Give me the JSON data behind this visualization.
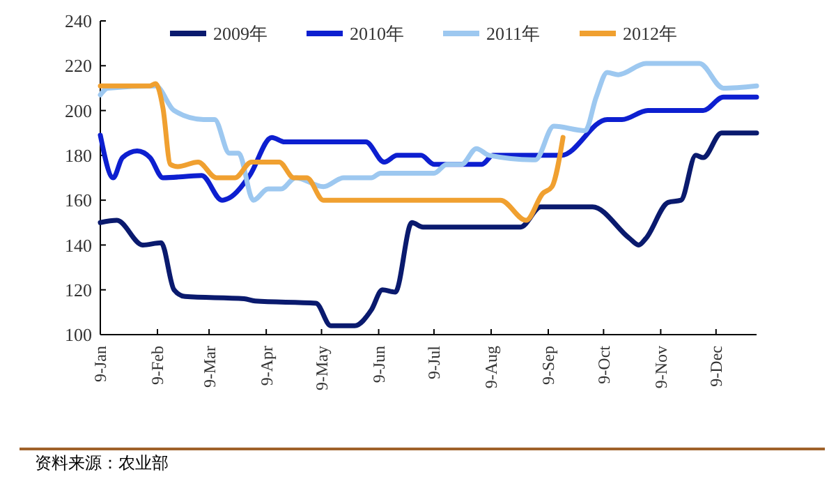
{
  "chart_data": {
    "type": "line",
    "xlim": [
      "--01-09",
      "--12-31"
    ],
    "xticks": [
      {
        "value": "--01-09",
        "label": "9-Jan"
      },
      {
        "value": "--02-09",
        "label": "9-Feb"
      },
      {
        "value": "--03-09",
        "label": "9-Mar"
      },
      {
        "value": "--04-09",
        "label": "9-Apr"
      },
      {
        "value": "--05-09",
        "label": "9-May"
      },
      {
        "value": "--06-09",
        "label": "9-Jun"
      },
      {
        "value": "--07-09",
        "label": "9-Jul"
      },
      {
        "value": "--08-09",
        "label": "9-Aug"
      },
      {
        "value": "--09-09",
        "label": "9-Sep"
      },
      {
        "value": "--10-09",
        "label": "9-Oct"
      },
      {
        "value": "--11-09",
        "label": "9-Nov"
      },
      {
        "value": "--12-09",
        "label": "9-Dec"
      }
    ],
    "ylim": [
      100,
      240
    ],
    "yticks": [
      100,
      120,
      140,
      160,
      180,
      200,
      220,
      240
    ],
    "legend": "top",
    "grid": false,
    "line_style": "solid",
    "series": [
      {
        "name": "2009年",
        "color": "#0a1a6e",
        "x": [
          "--01-09",
          "--01-18",
          "--02-01",
          "--02-11",
          "--02-18",
          "--02-24",
          "--03-28",
          "--04-03",
          "--05-06",
          "--05-14",
          "--05-27",
          "--06-05",
          "--06-11",
          "--06-18",
          "--06-27",
          "--07-03",
          "--08-25",
          "--09-05",
          "--10-03",
          "--10-23",
          "--10-28",
          "--11-01",
          "--11-13",
          "--11-20",
          "--11-28",
          "--12-02",
          "--12-12",
          "--12-31"
        ],
        "values": [
          150,
          151,
          140,
          141,
          120,
          117,
          116,
          115,
          114,
          104,
          104,
          111,
          120,
          119,
          150,
          148,
          148,
          157,
          157,
          143,
          140,
          143,
          159,
          160,
          180,
          179,
          190,
          190
        ]
      },
      {
        "name": "2010年",
        "color": "#0d1fd0",
        "x": [
          "--01-09",
          "--01-16",
          "--01-21",
          "--01-29",
          "--02-05",
          "--02-12",
          "--03-05",
          "--03-16",
          "--03-20",
          "--03-31",
          "--04-12",
          "--04-19",
          "--06-02",
          "--06-12",
          "--06-19",
          "--07-02",
          "--07-09",
          "--08-04",
          "--08-10",
          "--09-16",
          "--10-11",
          "--10-19",
          "--11-02",
          "--12-02",
          "--12-13",
          "--12-31"
        ],
        "values": [
          189,
          170,
          179,
          182,
          179,
          170,
          171,
          160,
          161,
          171,
          188,
          186,
          186,
          177,
          180,
          180,
          176,
          176,
          180,
          180,
          196,
          196,
          200,
          200,
          206,
          206
        ]
      },
      {
        "name": "2011年",
        "color": "#9dc8f0",
        "x": [
          "--01-09",
          "--01-13",
          "--02-08",
          "--02-18",
          "--03-06",
          "--03-12",
          "--03-20",
          "--03-25",
          "--04-02",
          "--04-10",
          "--04-17",
          "--04-25",
          "--05-10",
          "--05-21",
          "--06-05",
          "--06-10",
          "--06-27",
          "--07-09",
          "--07-16",
          "--07-24",
          "--08-01",
          "--08-08",
          "--09-02",
          "--09-12",
          "--09-29",
          "--10-05",
          "--10-11",
          "--10-17",
          "--11-01",
          "--11-30",
          "--12-13",
          "--12-31"
        ],
        "values": [
          207,
          210,
          211,
          200,
          196,
          196,
          181,
          181,
          160,
          165,
          165,
          170,
          166,
          170,
          170,
          172,
          172,
          172,
          176,
          176,
          183,
          180,
          178,
          193,
          191,
          206,
          217,
          216,
          221,
          221,
          210,
          211
        ]
      },
      {
        "name": "2012年",
        "color": "#f0a030",
        "x": [
          "--01-09",
          "--02-05",
          "--02-08",
          "--02-12",
          "--02-16",
          "--02-20",
          "--03-03",
          "--03-13",
          "--03-23",
          "--04-01",
          "--04-16",
          "--04-24",
          "--05-01",
          "--05-10",
          "--08-14",
          "--08-28",
          "--09-06",
          "--09-11",
          "--09-17"
        ],
        "values": [
          211,
          211,
          212,
          201,
          176,
          175,
          177,
          170,
          170,
          177,
          177,
          170,
          170,
          160,
          160,
          151,
          163,
          166,
          188
        ]
      }
    ],
    "annotations": [
      "资料来源：农业部"
    ]
  }
}
